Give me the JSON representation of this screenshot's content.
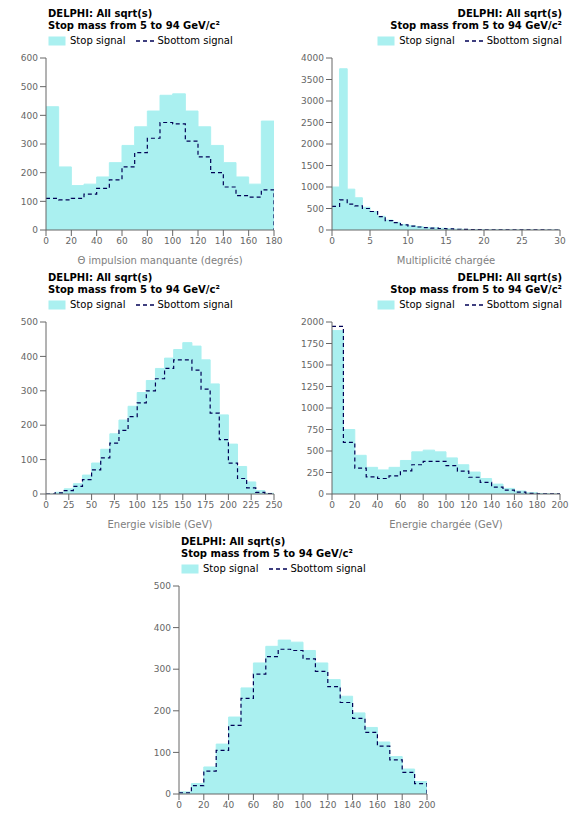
{
  "chart_data": [
    {
      "type": "step",
      "title": "DELPHI: All sqrt(s)",
      "subtitle": "Stop mass from 5 to 94 GeV/c²",
      "xlabel": "Θ impulsion manquante (degrés)",
      "legend": "upper left",
      "xlim": [
        0,
        180
      ],
      "ylim": [
        0,
        600
      ],
      "xticks": [
        0,
        20,
        40,
        60,
        80,
        100,
        120,
        140,
        160,
        180
      ],
      "yticks": [
        0,
        100,
        200,
        300,
        400,
        500,
        600
      ],
      "x": [
        0,
        10,
        20,
        30,
        40,
        50,
        60,
        70,
        80,
        90,
        100,
        110,
        120,
        130,
        140,
        150,
        160,
        170,
        180
      ],
      "series": [
        {
          "name": "Stop signal",
          "type": "area",
          "color": "#aaf0f0",
          "values": [
            430,
            220,
            155,
            160,
            185,
            235,
            295,
            360,
            415,
            470,
            475,
            415,
            360,
            295,
            235,
            185,
            160,
            380,
            0
          ]
        },
        {
          "name": "Sbottom signal",
          "type": "line",
          "line_style": "dashed",
          "color": "#000055",
          "values": [
            110,
            105,
            110,
            125,
            145,
            175,
            220,
            270,
            320,
            375,
            370,
            310,
            255,
            200,
            150,
            120,
            115,
            140,
            0
          ]
        }
      ]
    },
    {
      "type": "step",
      "title": "DELPHI: All sqrt(s)",
      "subtitle": "Stop mass from 5 to 94 GeV/c²",
      "xlabel": "Multiplicité chargée",
      "legend": "upper right",
      "xlim": [
        0,
        30
      ],
      "ylim": [
        0,
        4000
      ],
      "xticks": [
        0,
        5,
        10,
        15,
        20,
        25,
        30
      ],
      "yticks": [
        0,
        500,
        1000,
        1500,
        2000,
        2500,
        3000,
        3500,
        4000
      ],
      "x": [
        0,
        1,
        2,
        3,
        4,
        5,
        6,
        7,
        8,
        9,
        10,
        11,
        12,
        13,
        14,
        15,
        16,
        17,
        18,
        19,
        20,
        21,
        22,
        23,
        24,
        25,
        26,
        27,
        28,
        29,
        30
      ],
      "series": [
        {
          "name": "Stop signal",
          "type": "area",
          "color": "#aaf0f0",
          "values": [
            1000,
            3750,
            950,
            750,
            530,
            430,
            320,
            230,
            180,
            130,
            100,
            80,
            60,
            50,
            40,
            30,
            20,
            15,
            10,
            8,
            6,
            5,
            4,
            3,
            2,
            2,
            1,
            1,
            1,
            0,
            0
          ]
        },
        {
          "name": "Sbottom signal",
          "type": "line",
          "line_style": "dashed",
          "color": "#000055",
          "values": [
            550,
            700,
            600,
            560,
            500,
            430,
            310,
            220,
            170,
            120,
            90,
            70,
            55,
            45,
            35,
            28,
            18,
            13,
            9,
            7,
            5,
            4,
            3,
            2,
            2,
            1,
            1,
            1,
            0,
            0,
            0
          ]
        }
      ]
    },
    {
      "type": "step",
      "title": "DELPHI: All sqrt(s)",
      "subtitle": "Stop mass from 5 to 94 GeV/c²",
      "xlabel": "Energie visible (GeV)",
      "legend": "upper left",
      "xlim": [
        0,
        250
      ],
      "ylim": [
        0,
        500
      ],
      "xticks": [
        0,
        25,
        50,
        75,
        100,
        125,
        150,
        175,
        200,
        225,
        250
      ],
      "yticks": [
        0,
        100,
        200,
        300,
        400,
        500
      ],
      "x": [
        0,
        10,
        20,
        30,
        40,
        50,
        60,
        70,
        80,
        90,
        100,
        110,
        120,
        130,
        140,
        150,
        160,
        170,
        180,
        190,
        200,
        210,
        220,
        230,
        240,
        250
      ],
      "series": [
        {
          "name": "Stop signal",
          "type": "area",
          "color": "#aaf0f0",
          "values": [
            0,
            5,
            15,
            30,
            55,
            90,
            130,
            175,
            215,
            255,
            295,
            330,
            365,
            395,
            420,
            440,
            430,
            390,
            320,
            230,
            145,
            80,
            35,
            10,
            2,
            0
          ]
        },
        {
          "name": "Sbottom signal",
          "type": "line",
          "line_style": "dashed",
          "color": "#000055",
          "values": [
            0,
            3,
            10,
            22,
            42,
            70,
            105,
            148,
            185,
            225,
            265,
            300,
            335,
            365,
            390,
            390,
            360,
            305,
            235,
            158,
            90,
            45,
            18,
            5,
            1,
            0
          ]
        }
      ]
    },
    {
      "type": "step",
      "title": "DELPHI: All sqrt(s)",
      "subtitle": "Stop mass from 5 to 94 GeV/c²",
      "xlabel": "Energie chargée (GeV)",
      "legend": "upper right",
      "xlim": [
        0,
        200
      ],
      "ylim": [
        0,
        2000
      ],
      "xticks": [
        0,
        20,
        40,
        60,
        80,
        100,
        120,
        140,
        160,
        180,
        200
      ],
      "yticks": [
        0,
        250,
        500,
        750,
        1000,
        1250,
        1500,
        1750,
        2000
      ],
      "x": [
        0,
        10,
        20,
        30,
        40,
        50,
        60,
        70,
        80,
        90,
        100,
        110,
        120,
        130,
        140,
        150,
        160,
        170,
        180,
        190,
        200
      ],
      "series": [
        {
          "name": "Stop signal",
          "type": "area",
          "color": "#aaf0f0",
          "values": [
            1900,
            750,
            450,
            310,
            280,
            310,
            390,
            490,
            510,
            490,
            420,
            340,
            255,
            180,
            115,
            65,
            35,
            15,
            5,
            1,
            0
          ]
        },
        {
          "name": "Sbottom signal",
          "type": "line",
          "line_style": "dashed",
          "color": "#000055",
          "values": [
            1950,
            600,
            300,
            200,
            180,
            210,
            270,
            340,
            380,
            380,
            330,
            265,
            195,
            135,
            80,
            45,
            22,
            8,
            2,
            1,
            0
          ]
        }
      ]
    },
    {
      "type": "step",
      "title": "DELPHI: All sqrt(s)",
      "subtitle": "Stop mass from 5 to 94 GeV/c²",
      "legend": "upper left",
      "xlim": [
        0,
        200
      ],
      "ylim": [
        0,
        500
      ],
      "xticks": [
        0,
        20,
        40,
        60,
        80,
        100,
        120,
        140,
        160,
        180,
        200
      ],
      "yticks": [
        0,
        100,
        200,
        300,
        400,
        500
      ],
      "x": [
        0,
        10,
        20,
        30,
        40,
        50,
        60,
        70,
        80,
        90,
        100,
        110,
        120,
        130,
        140,
        150,
        160,
        170,
        180,
        190,
        200
      ],
      "series": [
        {
          "name": "Stop signal",
          "type": "area",
          "color": "#aaf0f0",
          "values": [
            5,
            25,
            65,
            120,
            185,
            255,
            315,
            355,
            370,
            365,
            345,
            315,
            275,
            235,
            195,
            160,
            125,
            90,
            60,
            30,
            0
          ]
        },
        {
          "name": "Sbottom signal",
          "type": "line",
          "line_style": "dashed",
          "color": "#000055",
          "values": [
            3,
            20,
            55,
            105,
            165,
            230,
            288,
            330,
            348,
            345,
            325,
            295,
            258,
            220,
            182,
            148,
            115,
            82,
            52,
            25,
            0
          ]
        }
      ]
    }
  ]
}
